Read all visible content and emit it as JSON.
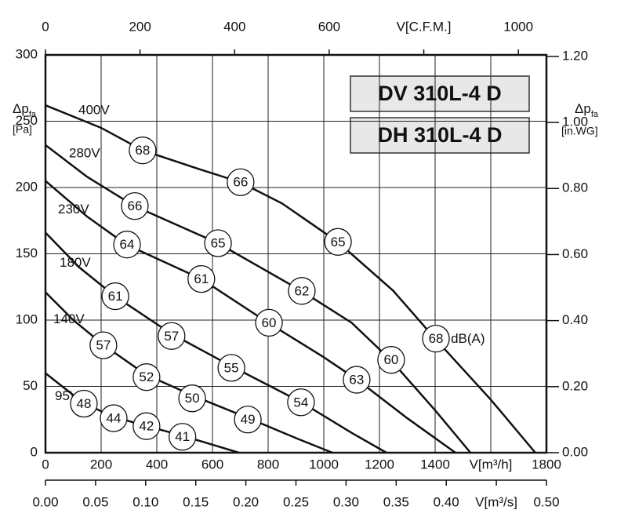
{
  "chart_data": {
    "type": "line",
    "titles": [
      "DV 310L-4 D",
      "DH 310L-4 D"
    ],
    "y_label": {
      "symbol": "Δp",
      "sub": "fa",
      "unit": "[Pa]"
    },
    "y2_label": {
      "symbol": "Δp",
      "sub": "fa",
      "unit": "[in.WG]"
    },
    "sound_unit": "dB(A)",
    "xlim": [
      0,
      1800
    ],
    "xticks": [
      0,
      200,
      400,
      600,
      800,
      1000,
      1200,
      1400,
      {
        "value": 1600,
        "label": "V[m³/h]"
      },
      1800
    ],
    "x2lim": [
      0,
      1059.4
    ],
    "x2ticks": [
      0,
      200,
      400,
      600,
      {
        "value": 800,
        "label": "V[C.F.M.]"
      },
      1000
    ],
    "x3lim": [
      0,
      0.5
    ],
    "x3ticks": [
      {
        "value": 0,
        "label": "0.00"
      },
      {
        "value": 0.05,
        "label": "0.05"
      },
      {
        "value": 0.1,
        "label": "0.10"
      },
      {
        "value": 0.15,
        "label": "0.15"
      },
      {
        "value": 0.2,
        "label": "0.20"
      },
      {
        "value": 0.25,
        "label": "0.25"
      },
      {
        "value": 0.3,
        "label": "0.30"
      },
      {
        "value": 0.35,
        "label": "0.35"
      },
      {
        "value": 0.4,
        "label": "0.40"
      },
      {
        "value": 0.45,
        "label": "V[m³/s]"
      },
      {
        "value": 0.5,
        "label": "0.50"
      }
    ],
    "ylim": [
      0,
      300
    ],
    "yticks": [
      0,
      50,
      100,
      150,
      200,
      250,
      300
    ],
    "y2lim": [
      0,
      1.2045
    ],
    "y2ticks": [
      {
        "value": 0,
        "label": "0.00"
      },
      {
        "value": 0.2,
        "label": "0.20"
      },
      {
        "value": 0.4,
        "label": "0.40"
      },
      {
        "value": 0.6,
        "label": "0.60"
      },
      {
        "value": 0.8,
        "label": "0.80"
      },
      {
        "value": 1.0,
        "label": "1.00"
      },
      {
        "value": 1.2,
        "label": "1.20"
      }
    ],
    "grid": true,
    "color": "#111111",
    "series": [
      {
        "name": "400V",
        "x": [
          0,
          200,
          350,
          550,
          700,
          850,
          1050,
          1250,
          1400,
          1600,
          1760
        ],
        "values": [
          262,
          245,
          228,
          214,
          204,
          188,
          159,
          122,
          86,
          40,
          0
        ],
        "sound": {
          "x": [
            349,
            701,
            1051,
            1403
          ],
          "y": [
            228,
            204,
            159,
            86
          ],
          "values": [
            68,
            66,
            65,
            68
          ]
        }
      },
      {
        "name": "280V",
        "x": [
          0,
          150,
          320,
          620,
          920,
          1100,
          1240,
          1400,
          1527
        ],
        "values": [
          232,
          208,
          186,
          158,
          122,
          98,
          70,
          32,
          0
        ],
        "sound": {
          "x": [
            321,
            620,
            921,
            1242
          ],
          "y": [
            186,
            158,
            122,
            70
          ],
          "values": [
            66,
            65,
            62,
            60
          ]
        }
      },
      {
        "name": "230V",
        "x": [
          0,
          150,
          290,
          560,
          800,
          1000,
          1120,
          1300,
          1473
        ],
        "values": [
          205,
          178,
          157,
          131,
          98,
          72,
          55,
          26,
          0
        ],
        "sound": {
          "x": [
            293,
            560,
            803,
            1118
          ],
          "y": [
            157,
            131,
            98,
            55
          ],
          "values": [
            64,
            61,
            60,
            63
          ]
        }
      },
      {
        "name": "180V",
        "x": [
          0,
          120,
          250,
          450,
          670,
          920,
          1100,
          1225
        ],
        "values": [
          166,
          140,
          118,
          90,
          65,
          38,
          15,
          0
        ],
        "sound": {
          "x": [
            251,
            453,
            668,
            918
          ],
          "y": [
            118,
            88,
            64,
            38
          ],
          "values": [
            61,
            57,
            55,
            54
          ]
        }
      },
      {
        "name": "140V",
        "x": [
          0,
          100,
          210,
          360,
          530,
          730,
          900,
          1031
        ],
        "values": [
          121,
          100,
          81,
          59,
          43,
          26,
          11,
          0
        ],
        "sound": {
          "x": [
            208,
            363,
            527,
            727
          ],
          "y": [
            81,
            57,
            41,
            25
          ],
          "values": [
            57,
            52,
            50,
            49
          ]
        }
      },
      {
        "name": "95V",
        "x": [
          0,
          60,
          140,
          245,
          365,
          490,
          600,
          695
        ],
        "values": [
          60,
          50,
          37,
          27,
          20,
          13,
          6,
          0
        ],
        "sound": {
          "x": [
            138,
            245,
            363,
            492
          ],
          "y": [
            37,
            26,
            20,
            12
          ],
          "values": [
            48,
            44,
            42,
            41
          ]
        }
      }
    ]
  }
}
